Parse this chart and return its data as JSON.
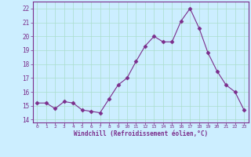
{
  "x": [
    0,
    1,
    2,
    3,
    4,
    5,
    6,
    7,
    8,
    9,
    10,
    11,
    12,
    13,
    14,
    15,
    16,
    17,
    18,
    19,
    20,
    21,
    22,
    23
  ],
  "y": [
    15.2,
    15.2,
    14.8,
    15.3,
    15.2,
    14.7,
    14.6,
    14.5,
    15.5,
    16.5,
    17.0,
    18.2,
    19.3,
    20.0,
    19.6,
    19.6,
    21.1,
    22.0,
    20.6,
    18.8,
    17.5,
    16.5,
    16.0,
    14.7
  ],
  "line_color": "#7b2d8b",
  "marker": "D",
  "marker_size": 2.5,
  "bg_color": "#cceeff",
  "grid_color": "#aaddcc",
  "xlabel": "Windchill (Refroidissement éolien,°C)",
  "xlabel_color": "#7b2d8b",
  "tick_color": "#7b2d8b",
  "ylim": [
    13.8,
    22.5
  ],
  "yticks": [
    14,
    15,
    16,
    17,
    18,
    19,
    20,
    21,
    22
  ],
  "xlim": [
    -0.5,
    23.5
  ],
  "xticks": [
    0,
    1,
    2,
    3,
    4,
    5,
    6,
    7,
    8,
    9,
    10,
    11,
    12,
    13,
    14,
    15,
    16,
    17,
    18,
    19,
    20,
    21,
    22,
    23
  ]
}
